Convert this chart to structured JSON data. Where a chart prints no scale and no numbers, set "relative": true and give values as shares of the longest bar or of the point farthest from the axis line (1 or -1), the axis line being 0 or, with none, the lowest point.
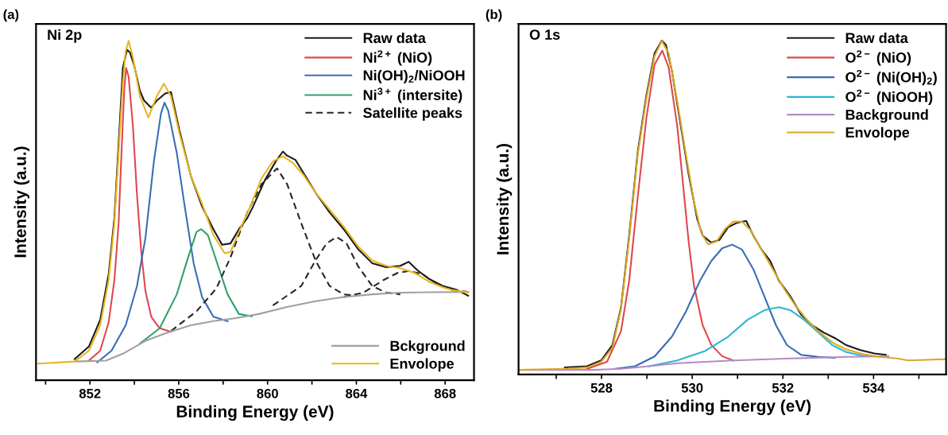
{
  "chart_data": [
    {
      "type": "line",
      "title": "(a)",
      "annotations": [
        "Ni 2p"
      ],
      "xlabel": "Binding Energy (eV)",
      "ylabel": "Intensity (a.u.)",
      "relative": true,
      "legend": [
        "top right",
        "bottom right"
      ],
      "xlim": [
        849.57,
        869.3
      ],
      "xticks": [
        {
          "value": 850,
          "label": null
        },
        852,
        {
          "value": 854,
          "label": null
        },
        856,
        {
          "value": 858,
          "label": null
        },
        860,
        {
          "value": 862,
          "label": null
        },
        864,
        {
          "value": 866,
          "label": null
        },
        868
      ],
      "series": [
        {
          "name": "Raw data",
          "color": "#1a1a1a",
          "x": [
            851.31,
            851.95,
            852.46,
            852.84,
            853.1,
            853.29,
            853.48,
            853.67,
            853.8,
            853.99,
            854.25,
            854.44,
            854.76,
            855.01,
            855.39,
            855.65,
            856.03,
            856.54,
            857.05,
            857.56,
            857.95,
            858.33,
            858.71,
            859.09,
            859.35,
            859.86,
            860.37,
            860.69,
            860.88,
            861.26,
            861.77,
            862.16,
            862.79,
            863.43,
            864.07,
            864.71,
            865.34,
            865.98,
            866.36,
            866.75,
            867.26,
            867.89,
            868.53,
            869.04
          ],
          "values": [
            0.062,
            0.099,
            0.178,
            0.312,
            0.478,
            0.695,
            0.92,
            0.974,
            0.966,
            0.928,
            0.853,
            0.824,
            0.803,
            0.824,
            0.845,
            0.849,
            0.737,
            0.603,
            0.512,
            0.445,
            0.399,
            0.403,
            0.445,
            0.478,
            0.512,
            0.587,
            0.645,
            0.674,
            0.662,
            0.649,
            0.595,
            0.553,
            0.495,
            0.445,
            0.387,
            0.345,
            0.333,
            0.337,
            0.349,
            0.324,
            0.299,
            0.278,
            0.266,
            0.249
          ]
        },
        {
          "name": "Ni$^{2+}$ (NiO)",
          "color": "#e0474c",
          "x": [
            851.95,
            852.46,
            852.84,
            853.1,
            853.29,
            853.42,
            853.55,
            853.63,
            853.74,
            853.93,
            854.12,
            854.31,
            854.5,
            854.76,
            855.14,
            855.65
          ],
          "values": [
            0.0575,
            0.087,
            0.17,
            0.295,
            0.462,
            0.67,
            0.862,
            0.92,
            0.895,
            0.753,
            0.545,
            0.378,
            0.262,
            0.187,
            0.153,
            0.1425
          ]
        },
        {
          "name": "Ni(OH)$_{2}$/NiOOH",
          "color": "#3a6db5",
          "x": [
            852.33,
            852.97,
            853.61,
            854.12,
            854.5,
            854.88,
            855.2,
            855.36,
            855.52,
            855.91,
            856.29,
            856.67,
            857.05,
            857.56,
            858.2
          ],
          "values": [
            0.053,
            0.087,
            0.162,
            0.278,
            0.42,
            0.645,
            0.787,
            0.818,
            0.795,
            0.67,
            0.503,
            0.345,
            0.245,
            0.187,
            0.174
          ]
        },
        {
          "name": "Ni$^{3+}$ (intersite)",
          "color": "#2ea36a",
          "x": [
            854.25,
            855.14,
            855.91,
            856.42,
            856.8,
            857.01,
            857.31,
            857.69,
            858.2,
            858.71,
            859.29
          ],
          "values": [
            0.108,
            0.153,
            0.253,
            0.362,
            0.437,
            0.445,
            0.428,
            0.353,
            0.253,
            0.195,
            0.188
          ]
        },
        {
          "name": "Satellite peaks",
          "color": "#262626",
          "line_style": "dashed",
          "x": [
            855.65,
            856.8,
            857.69,
            858.33,
            859.09,
            859.73,
            860.24,
            860.43,
            860.88,
            861.52,
            862.16,
            862.79,
            863.43,
            864.07
          ],
          "values": [
            0.145,
            0.203,
            0.27,
            0.362,
            0.495,
            0.578,
            0.612,
            0.624,
            0.578,
            0.462,
            0.353,
            0.278,
            0.253,
            0.249
          ]
        },
        {
          "color": "#262626",
          "line_style": "dashed",
          "x": [
            860.24,
            861.52,
            862.16,
            862.66,
            863.11,
            863.56,
            864.07,
            864.71,
            865.34,
            865.98
          ],
          "values": [
            0.22,
            0.278,
            0.353,
            0.403,
            0.422,
            0.403,
            0.337,
            0.278,
            0.258,
            0.253
          ]
        },
        {
          "color": "#262626",
          "line_style": "dashed",
          "x": [
            863.43,
            864.32,
            865.22,
            865.85,
            866.36,
            867.0,
            867.64,
            868.28,
            869.04
          ],
          "values": [
            0.245,
            0.258,
            0.295,
            0.316,
            0.322,
            0.312,
            0.283,
            0.266,
            0.26
          ]
        },
        {
          "name": "Bckground",
          "color": "#a0a0a0",
          "x": [
            851.31,
            852.72,
            853.48,
            854.5,
            855.52,
            856.54,
            857.56,
            858.58,
            859.6,
            860.88,
            862.16,
            863.43,
            864.71,
            865.98,
            867.26,
            869.04
          ],
          "values": [
            0.055,
            0.0575,
            0.078,
            0.116,
            0.141,
            0.162,
            0.174,
            0.183,
            0.195,
            0.216,
            0.233,
            0.245,
            0.253,
            0.258,
            0.259,
            0.26
          ]
        },
        {
          "name": "Envolope",
          "color": "#e8b520",
          "x": [
            849.66,
            851.31,
            851.95,
            852.46,
            852.84,
            853.1,
            853.29,
            853.48,
            853.61,
            853.74,
            853.93,
            854.25,
            854.63,
            855.01,
            855.33,
            855.65,
            856.03,
            856.54,
            857.05,
            857.56,
            858.07,
            858.33,
            858.71,
            859.22,
            859.73,
            860.24,
            860.69,
            861.13,
            861.64,
            862.16,
            862.79,
            863.43,
            864.07,
            864.71,
            865.34,
            865.98,
            866.62,
            867.26,
            867.89,
            868.28,
            869.04
          ],
          "values": [
            0.049,
            0.055,
            0.087,
            0.162,
            0.295,
            0.462,
            0.67,
            0.878,
            0.97,
            1.0,
            0.953,
            0.837,
            0.774,
            0.837,
            0.874,
            0.837,
            0.728,
            0.603,
            0.52,
            0.428,
            0.374,
            0.378,
            0.437,
            0.512,
            0.595,
            0.645,
            0.66,
            0.641,
            0.603,
            0.553,
            0.503,
            0.453,
            0.395,
            0.353,
            0.337,
            0.33,
            0.316,
            0.291,
            0.274,
            0.266,
            0.258
          ]
        }
      ]
    },
    {
      "type": "line",
      "title": "(b)",
      "annotations": [
        "O 1s"
      ],
      "xlabel": "Binding Energy (eV)",
      "ylabel": "Intensity (a.u.)",
      "relative": true,
      "legend": "top right",
      "xlim": [
        526.17,
        535.6
      ],
      "xticks": [
        {
          "value": 527,
          "label": null
        },
        528,
        {
          "value": 529,
          "label": null
        },
        530,
        {
          "value": 531,
          "label": null
        },
        532,
        {
          "value": 533,
          "label": null
        },
        534,
        {
          "value": 535,
          "label": null
        }
      ],
      "series": [
        {
          "name": "Raw data",
          "color": "#1a1a1a",
          "x": [
            527.19,
            527.68,
            527.99,
            528.24,
            528.43,
            528.61,
            528.8,
            528.99,
            529.17,
            529.33,
            529.42,
            529.55,
            529.73,
            529.92,
            530.11,
            530.23,
            530.42,
            530.6,
            530.79,
            530.98,
            531.19,
            531.35,
            531.53,
            531.72,
            531.91,
            532.16,
            532.4,
            532.65,
            532.9,
            533.15,
            533.4,
            533.71,
            534.02,
            534.27
          ],
          "values": [
            0.021,
            0.025,
            0.042,
            0.088,
            0.201,
            0.416,
            0.668,
            0.836,
            0.962,
            1.0,
            0.987,
            0.911,
            0.76,
            0.601,
            0.466,
            0.416,
            0.395,
            0.403,
            0.441,
            0.454,
            0.46,
            0.416,
            0.374,
            0.34,
            0.282,
            0.235,
            0.18,
            0.147,
            0.126,
            0.109,
            0.088,
            0.073,
            0.063,
            0.059
          ]
        },
        {
          "name": "O$^{2−}$ (NiO)",
          "color": "#e0474c",
          "x": [
            527.68,
            528.12,
            528.43,
            528.61,
            528.8,
            528.99,
            529.17,
            529.34,
            529.48,
            529.67,
            529.8,
            529.92,
            530.04,
            530.23,
            530.42,
            530.66,
            530.91
          ],
          "values": [
            0.017,
            0.038,
            0.13,
            0.281,
            0.533,
            0.769,
            0.929,
            0.97,
            0.92,
            0.744,
            0.567,
            0.4,
            0.266,
            0.148,
            0.089,
            0.055,
            0.042
          ]
        },
        {
          "name": "O$^{2−}$ (Ni(OH)$_{2}$)",
          "color": "#3a6db5",
          "x": [
            528.3,
            528.74,
            529.17,
            529.55,
            529.86,
            530.17,
            530.42,
            530.66,
            530.88,
            531.1,
            531.35,
            531.6,
            531.85,
            532.09,
            532.4,
            532.78,
            533.15
          ],
          "values": [
            0.017,
            0.025,
            0.054,
            0.113,
            0.188,
            0.281,
            0.34,
            0.378,
            0.389,
            0.374,
            0.315,
            0.231,
            0.147,
            0.088,
            0.059,
            0.053,
            0.05
          ]
        },
        {
          "name": "O$^{2−}$ (NiOOH)",
          "color": "#2bb7cf",
          "x": [
            529.05,
            529.67,
            530.29,
            530.79,
            531.22,
            531.6,
            531.91,
            532.16,
            532.47,
            532.78,
            533.09,
            533.4,
            533.77,
            534.27
          ],
          "values": [
            0.025,
            0.042,
            0.071,
            0.113,
            0.164,
            0.193,
            0.202,
            0.193,
            0.164,
            0.126,
            0.088,
            0.067,
            0.056,
            0.053
          ]
        },
        {
          "name": "Background",
          "color": "#b38cc8",
          "x": [
            526.19,
            527.81,
            528.43,
            529.05,
            529.67,
            530.91,
            532.16,
            533.4,
            534.33
          ],
          "values": [
            0.014,
            0.014,
            0.017,
            0.025,
            0.034,
            0.042,
            0.048,
            0.053,
            0.055
          ]
        },
        {
          "name": "Envolope",
          "color": "#d9a826",
          "x": [
            526.19,
            527.19,
            527.68,
            527.99,
            528.24,
            528.43,
            528.61,
            528.8,
            528.99,
            529.17,
            529.33,
            529.48,
            529.67,
            529.86,
            530.04,
            530.2,
            530.35,
            530.54,
            530.73,
            530.91,
            531.1,
            531.29,
            531.53,
            531.78,
            532.03,
            532.28,
            532.53,
            532.78,
            533.09,
            533.4,
            533.77,
            534.14,
            534.52,
            534.76,
            535.14,
            535.59
          ],
          "values": [
            0.014,
            0.017,
            0.021,
            0.038,
            0.08,
            0.197,
            0.407,
            0.66,
            0.827,
            0.954,
            0.999,
            0.962,
            0.819,
            0.66,
            0.517,
            0.424,
            0.39,
            0.399,
            0.437,
            0.458,
            0.458,
            0.432,
            0.374,
            0.315,
            0.256,
            0.206,
            0.164,
            0.13,
            0.096,
            0.075,
            0.061,
            0.053,
            0.048,
            0.042,
            0.044,
            0.046
          ]
        }
      ]
    }
  ]
}
